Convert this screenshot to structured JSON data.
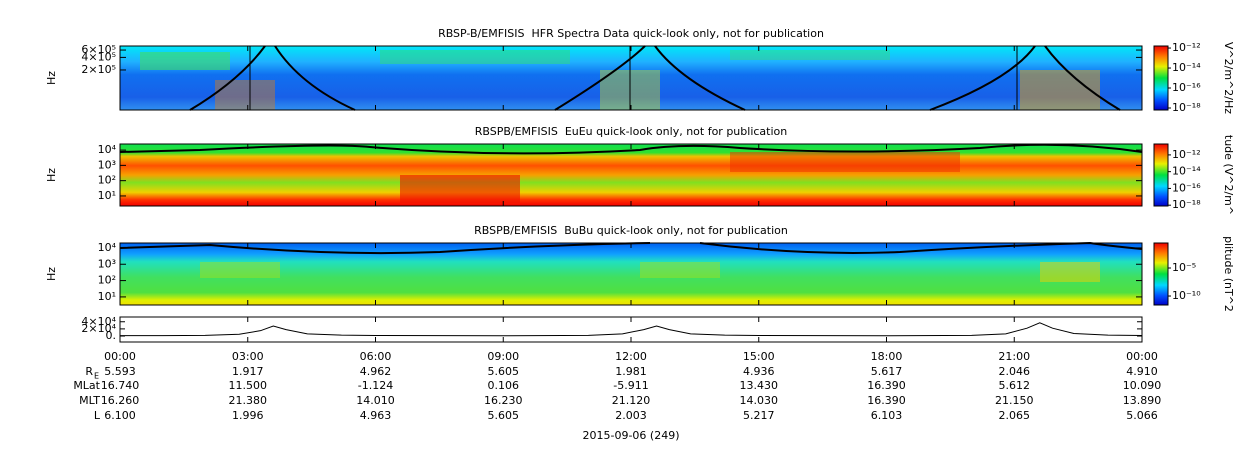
{
  "chart_data": [
    {
      "type": "spectrogram",
      "title": "RBSP-B/EMFISIS  HFR Spectra Data quick-look only, not for publication",
      "ylabel": "Hz",
      "log_y": true,
      "ylim": [
        22000,
        750000
      ],
      "yticks": [
        {
          "value": 600000,
          "label": "6×10⁵"
        },
        {
          "value": 400000,
          "label": "4×10⁵"
        },
        {
          "value": 200000,
          "label": "2×10⁵"
        }
      ],
      "colorbar": {
        "label": "V^2/m^2/Hz",
        "lim": [
          6.3e-19,
          1.6e-12
        ],
        "ticks": [
          {
            "value": 1e-12,
            "label": "10⁻¹²"
          },
          {
            "value": 1e-14,
            "label": "10⁻¹⁴"
          },
          {
            "value": 1e-16,
            "label": "10⁻¹⁶"
          },
          {
            "value": 1e-18,
            "label": "10⁻¹⁸"
          }
        ]
      }
    },
    {
      "type": "spectrogram",
      "title": "RBSPB/EMFISIS  EuEu quick-look only, not for publication",
      "ylabel": "Hz",
      "log_y": true,
      "ylim": [
        2.2,
        25000
      ],
      "yticks": [
        {
          "value": 10000,
          "label": "10⁴"
        },
        {
          "value": 1000,
          "label": "10³"
        },
        {
          "value": 100,
          "label": "10²"
        },
        {
          "value": 10,
          "label": "10¹"
        }
      ],
      "colorbar": {
        "label": "tude (V^2/m^",
        "lim": [
          8e-19,
          2e-11
        ],
        "ticks": [
          {
            "value": 1e-12,
            "label": "10⁻¹²"
          },
          {
            "value": 1e-14,
            "label": "10⁻¹⁴"
          },
          {
            "value": 1e-16,
            "label": "10⁻¹⁶"
          },
          {
            "value": 1e-18,
            "label": "10⁻¹⁸"
          }
        ]
      }
    },
    {
      "type": "spectrogram",
      "title": "RBSPB/EMFISIS  BuBu quick-look only, not for publication",
      "ylabel": "Hz",
      "log_y": true,
      "ylim": [
        3.2,
        20000
      ],
      "yticks": [
        {
          "value": 10000,
          "label": "10⁴"
        },
        {
          "value": 1000,
          "label": "10³"
        },
        {
          "value": 100,
          "label": "10²"
        },
        {
          "value": 10,
          "label": "10¹"
        }
      ],
      "colorbar": {
        "label": "plitude (nT^2",
        "lim": [
          2.5e-12,
          0.29
        ],
        "ticks": [
          {
            "value": 1e-05,
            "label": "10⁻⁵"
          },
          {
            "value": 1e-10,
            "label": "10⁻¹⁰"
          }
        ]
      }
    },
    {
      "type": "line",
      "color": "#000000",
      "ylim": [
        -16700,
        53300
      ],
      "yticks": [
        {
          "value": 40000,
          "label": "4×10⁴"
        },
        {
          "value": 20000,
          "label": "2×10⁴"
        },
        {
          "value": 0,
          "label": "0."
        }
      ],
      "xlim": [
        0,
        24
      ],
      "xticks": [
        {
          "value": 0,
          "label": "00:00"
        },
        {
          "value": 3,
          "label": "03:00"
        },
        {
          "value": 6,
          "label": "06:00"
        },
        {
          "value": 9,
          "label": "09:00"
        },
        {
          "value": 12,
          "label": "12:00"
        },
        {
          "value": 15,
          "label": "15:00"
        },
        {
          "value": 18,
          "label": "18:00"
        },
        {
          "value": 21,
          "label": "21:00"
        },
        {
          "value": 24,
          "label": "00:00"
        }
      ],
      "xlabel": "2015-09-06 (249)",
      "x": [
        0,
        1,
        2,
        2.8,
        3.3,
        3.6,
        3.9,
        4.4,
        5.2,
        6,
        9,
        11,
        11.8,
        12.3,
        12.6,
        12.9,
        13.4,
        14.2,
        15,
        18,
        20,
        20.8,
        21.3,
        21.6,
        21.9,
        22.4,
        23.2,
        24
      ],
      "values": [
        1000,
        1200,
        2000,
        5000,
        15000,
        28000,
        18000,
        6000,
        2500,
        1500,
        900,
        2000,
        6000,
        18000,
        28000,
        18000,
        6000,
        2500,
        1500,
        900,
        2000,
        6000,
        22000,
        37000,
        22000,
        7000,
        2500,
        1500
      ],
      "ephemeris": [
        {
          "label": "R",
          "sub": "E",
          "values": [
            "5.593",
            "1.917",
            "4.962",
            "5.605",
            "1.981",
            "4.936",
            "5.617",
            "2.046",
            "4.910"
          ]
        },
        {
          "label": "MLat",
          "values": [
            "16.740",
            "11.500",
            "-1.124",
            "0.106",
            "-5.911",
            "13.430",
            "16.390",
            "5.612",
            "10.090"
          ]
        },
        {
          "label": "MLT",
          "values": [
            "16.260",
            "21.380",
            "14.010",
            "16.230",
            "21.120",
            "14.030",
            "16.390",
            "21.150",
            "13.890"
          ]
        },
        {
          "label": "L",
          "values": [
            "6.100",
            "1.996",
            "4.963",
            "5.605",
            "2.003",
            "5.217",
            "6.103",
            "2.065",
            "5.066"
          ]
        }
      ]
    }
  ]
}
